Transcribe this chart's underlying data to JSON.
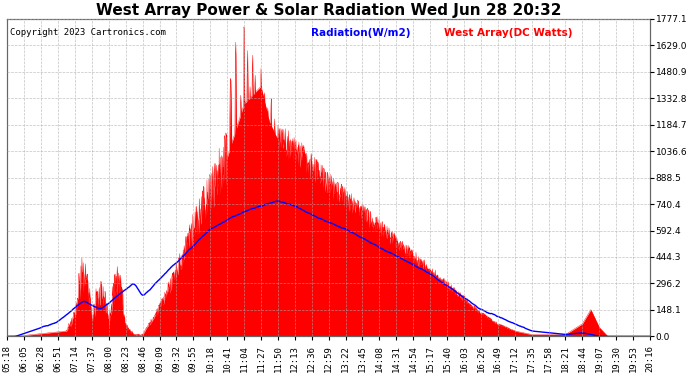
{
  "title": "West Array Power & Solar Radiation Wed Jun 28 20:32",
  "copyright": "Copyright 2023 Cartronics.com",
  "legend_radiation": "Radiation(W/m2)",
  "legend_west": "West Array(DC Watts)",
  "bg_color": "#ffffff",
  "plot_bg_color": "#ffffff",
  "grid_color": "#aaaaaa",
  "radiation_color": "blue",
  "west_color": "red",
  "west_fill_color": "red",
  "right_yticks": [
    0.0,
    148.1,
    296.2,
    444.3,
    592.4,
    740.4,
    888.5,
    1036.6,
    1184.7,
    1332.8,
    1480.9,
    1629.0,
    1777.1
  ],
  "right_ylabels": [
    "0.0",
    "148.1",
    "296.2",
    "444.3",
    "592.4",
    "740.4",
    "888.5",
    "1036.6",
    "1184.7",
    "1332.8",
    "1480.9",
    "1629.0",
    "1777.1"
  ],
  "xtick_labels": [
    "05:18",
    "06:05",
    "06:28",
    "06:51",
    "07:14",
    "07:37",
    "08:00",
    "08:23",
    "08:46",
    "09:09",
    "09:32",
    "09:55",
    "10:18",
    "10:41",
    "11:04",
    "11:27",
    "11:50",
    "12:13",
    "12:36",
    "12:59",
    "13:22",
    "13:45",
    "14:08",
    "14:31",
    "14:54",
    "15:17",
    "15:40",
    "16:03",
    "16:26",
    "16:49",
    "17:12",
    "17:35",
    "17:58",
    "18:21",
    "18:44",
    "19:07",
    "19:30",
    "19:53",
    "20:16"
  ],
  "ylim": [
    0,
    1777.1
  ],
  "title_fontsize": 11,
  "copyright_fontsize": 6.5,
  "legend_fontsize": 7.5,
  "tick_fontsize": 6.5
}
